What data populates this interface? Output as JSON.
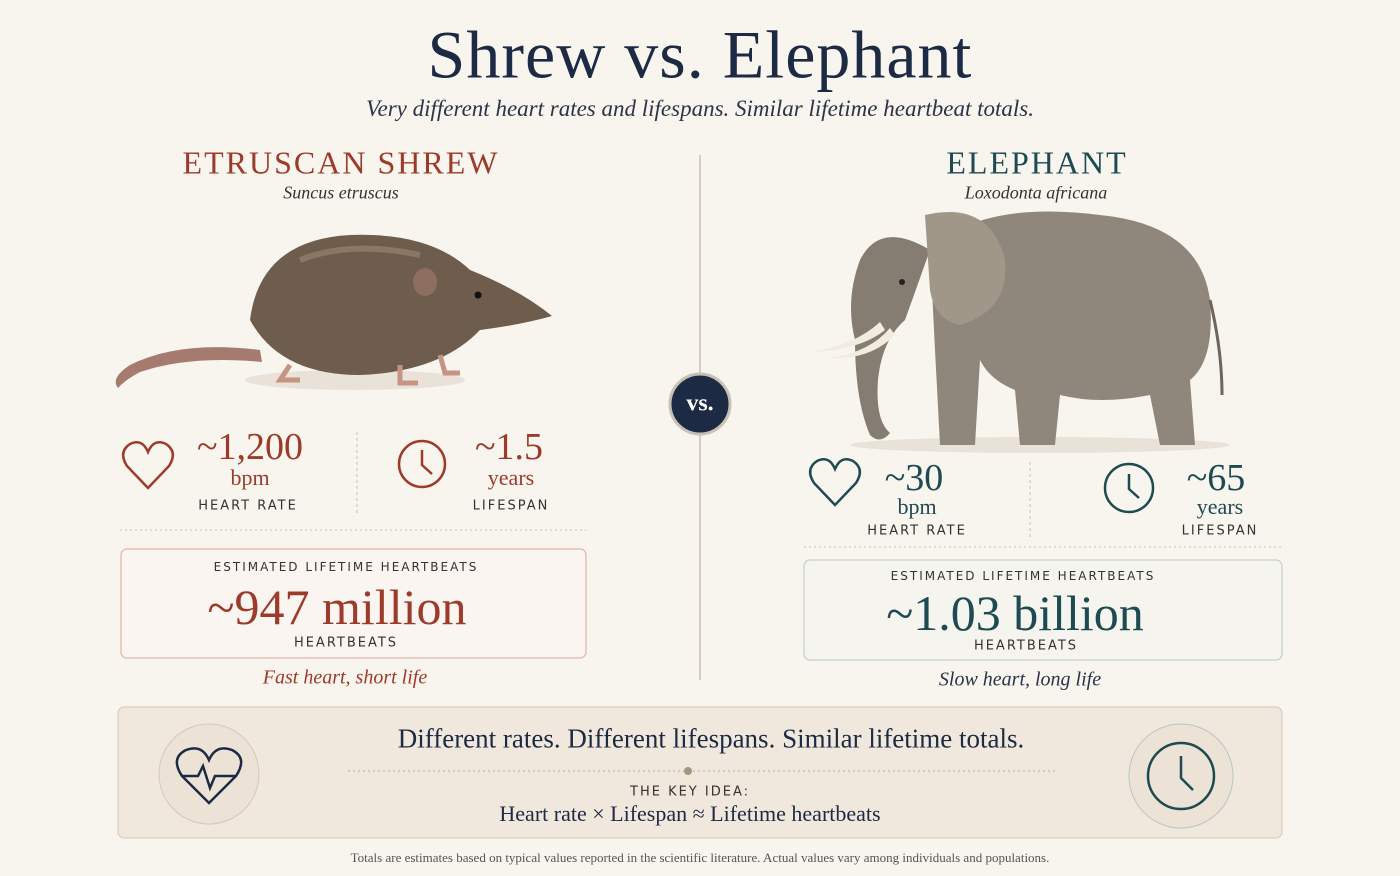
{
  "header": {
    "title": "Shrew vs. Elephant",
    "subtitle": "Very different heart rates and lifespans. Similar lifetime heartbeat totals."
  },
  "vs": "vs.",
  "animals": [
    {
      "name": "ETRUSCAN SHREW",
      "species": "Suncus etruscus",
      "heart_rate": "~1,200",
      "heart_rate_unit": "bpm",
      "heart_rate_label": "HEART RATE",
      "lifespan": "~1.5",
      "lifespan_unit": "years",
      "lifespan_label": "LIFESPAN",
      "total_label": "ESTIMATED LIFETIME HEARTBEATS",
      "total": "~947 million",
      "total_unit": "HEARTBEATS",
      "tagline": "Fast heart, short life"
    },
    {
      "name": "ELEPHANT",
      "species": "Loxodonta africana",
      "heart_rate": "~30",
      "heart_rate_unit": "bpm",
      "heart_rate_label": "HEART RATE",
      "lifespan": "~65",
      "lifespan_unit": "years",
      "lifespan_label": "LIFESPAN",
      "total_label": "ESTIMATED LIFETIME HEARTBEATS",
      "total": "~1.03 billion",
      "total_unit": "HEARTBEATS",
      "tagline": "Slow heart, long life"
    }
  ],
  "summary": {
    "headline": "Different rates. Different lifespans. Similar lifetime totals.",
    "key_idea_label": "THE KEY IDEA:",
    "formula": "Heart rate × Lifespan ≈ Lifetime heartbeats"
  },
  "footnote": "Totals are estimates based on typical values reported in the scientific literature. Actual values vary among individuals and populations."
}
